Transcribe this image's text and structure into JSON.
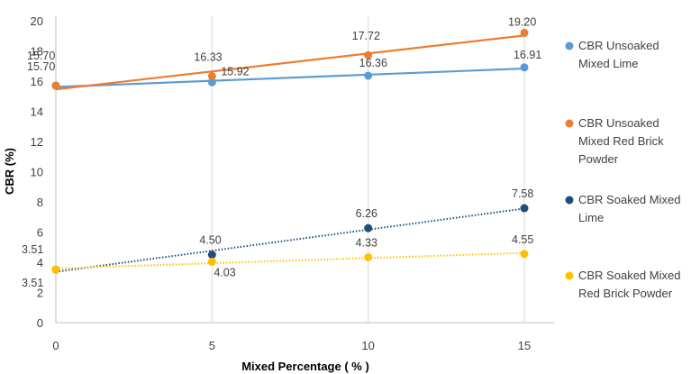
{
  "chart_data": {
    "type": "scatter",
    "xlabel": "Mixed Percentage ( % )",
    "ylabel": "CBR (%)",
    "xlim": [
      0,
      15
    ],
    "ylim": [
      0,
      20
    ],
    "xticks": [
      "0",
      "5",
      "10",
      "15"
    ],
    "yticks": [
      "0",
      "2",
      "4",
      "6",
      "8",
      "10",
      "12",
      "14",
      "16",
      "18",
      "20"
    ],
    "grid": "vertical",
    "legend_position": "right",
    "series": [
      {
        "name": "CBR Unsoaked Mixed Lime",
        "color": "#5B9BD5",
        "trendline": "solid",
        "points": [
          {
            "x": 0,
            "y": 15.7,
            "label": "15.70"
          },
          {
            "x": 5,
            "y": 15.92,
            "label": "15.92"
          },
          {
            "x": 10,
            "y": 16.36,
            "label": "16.36"
          },
          {
            "x": 15,
            "y": 16.91,
            "label": "16.91"
          }
        ]
      },
      {
        "name": "CBR Unsoaked Mixed Red Brick Powder",
        "color": "#ED7D31",
        "trendline": "solid",
        "points": [
          {
            "x": 0,
            "y": 15.7,
            "label": "15.70"
          },
          {
            "x": 5,
            "y": 16.33,
            "label": "16.33"
          },
          {
            "x": 10,
            "y": 17.72,
            "label": "17.72"
          },
          {
            "x": 15,
            "y": 19.2,
            "label": "19.20"
          }
        ]
      },
      {
        "name": "CBR Soaked Mixed Lime",
        "color": "#1F4E79",
        "trendline": "dotted",
        "points": [
          {
            "x": 0,
            "y": 3.51,
            "label": "3.51"
          },
          {
            "x": 5,
            "y": 4.5,
            "label": "4.50"
          },
          {
            "x": 10,
            "y": 6.26,
            "label": "6.26"
          },
          {
            "x": 15,
            "y": 7.58,
            "label": "7.58"
          }
        ]
      },
      {
        "name": "CBR Soaked Mixed Red Brick Powder",
        "color": "#FFC000",
        "trendline": "dotted",
        "points": [
          {
            "x": 0,
            "y": 3.51,
            "label": "3.51"
          },
          {
            "x": 5,
            "y": 4.03,
            "label": "4.03"
          },
          {
            "x": 10,
            "y": 4.33,
            "label": "4.33"
          },
          {
            "x": 15,
            "y": 4.55,
            "label": "4.55"
          }
        ]
      }
    ],
    "legend_lines": [
      [
        "CBR Unsoaked",
        "Mixed Lime"
      ],
      [
        "CBR Unsoaked",
        "Mixed Red Brick",
        "Powder"
      ],
      [
        "CBR Soaked Mixed",
        "Lime"
      ],
      [
        "CBR Soaked Mixed",
        "Red Brick Powder"
      ]
    ]
  }
}
